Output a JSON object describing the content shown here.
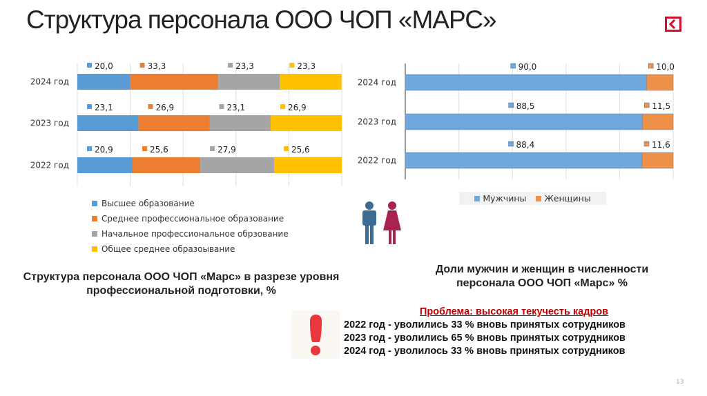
{
  "slide": {
    "title": "Структура персонала ООО ЧОП «МАРС»",
    "page_number": "13"
  },
  "chart_data": [
    {
      "type": "bar",
      "orientation": "horizontal",
      "stacked": "percent",
      "categories": [
        "2024 год",
        "2023 год",
        "2022 год"
      ],
      "series": [
        {
          "name": "Высшее образование",
          "color": "#5b9bd5",
          "values": [
            20.0,
            23.1,
            20.9
          ],
          "labels": [
            "20,0",
            "23,1",
            "20,9"
          ]
        },
        {
          "name": "Среднее профессиональное образование",
          "color": "#ed7d31",
          "values": [
            33.3,
            26.9,
            25.6
          ],
          "labels": [
            "33,3",
            "26,9",
            "25,6"
          ]
        },
        {
          "name": "Начальное профессиональное обрзование",
          "color": "#a5a5a5",
          "values": [
            23.3,
            23.1,
            27.9
          ],
          "labels": [
            "23,3",
            "23,1",
            "27,9"
          ]
        },
        {
          "name": "Общее среднее образоывание",
          "color": "#ffc000",
          "values": [
            23.3,
            26.9,
            25.6
          ],
          "labels": [
            "23,3",
            "26,9",
            "25,6"
          ]
        }
      ],
      "xlim": [
        0,
        100
      ],
      "grid": true,
      "legend": "bottom",
      "caption": "Структура персонала ООО ЧОП «Марс» в разрезе уровня профессиональной подготовки, %"
    },
    {
      "type": "bar",
      "orientation": "horizontal",
      "stacked": "percent",
      "categories": [
        "2024 год",
        "2023 год",
        "2022 год"
      ],
      "series": [
        {
          "name": "Мужчины",
          "color": "#6fa8dc",
          "values": [
            90.0,
            88.5,
            88.4
          ],
          "labels": [
            "90,0",
            "88,5",
            "88,4"
          ]
        },
        {
          "name": "Женщины",
          "color": "#f0914a",
          "values": [
            10.0,
            11.5,
            11.6
          ],
          "labels": [
            "10,0",
            "11,5",
            "11,6"
          ]
        }
      ],
      "xlim": [
        0,
        100
      ],
      "grid": true,
      "legend": "bottom",
      "caption": "Доли мужчин и женщин в численности персонала ООО ЧОП «Марс» %"
    }
  ],
  "problem": {
    "heading": "Проблема: высокая текучесть кадров",
    "lines": [
      "2022 год - уволились 33 % вновь принятых  сотрудников",
      "2023 год - уволились  65 % вновь принятых  сотрудников",
      "2024 год  - уволилось 33 % вновь принятых сотрудников"
    ]
  },
  "icons": {
    "logo": "back-arrow-logo",
    "people": "man-woman-icon",
    "warning": "exclamation-icon"
  }
}
